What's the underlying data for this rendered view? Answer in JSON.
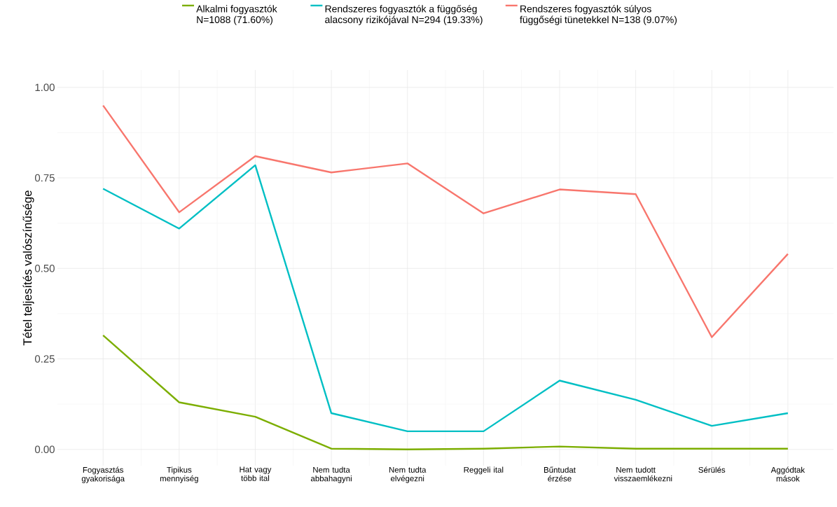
{
  "chart_data": {
    "type": "line",
    "ylabel": "Tétel teljesítés valószínűsége",
    "categories": [
      "Fogyasztás gyakorisága",
      "Tipikus mennyiség",
      "Hat vagy több ital",
      "Nem tudta abbahagyni",
      "Nem tudta elvégezni",
      "Reggeli ital",
      "Bűntudat érzése",
      "Nem tudott visszaemlékezni",
      "Sérülés",
      "Aggódtak mások"
    ],
    "series": [
      {
        "name": "Alkalmi fogyasztók N=1088 (71.60%)",
        "color": "#7cae00",
        "values": [
          0.315,
          0.13,
          0.09,
          0.002,
          0.0,
          0.002,
          0.008,
          0.002,
          0.002,
          0.002
        ]
      },
      {
        "name": "Rendszeres fogyasztók a függőség alacsony rizikójával N=294 (19.33%)",
        "color": "#00bfc4",
        "values": [
          0.72,
          0.61,
          0.785,
          0.1,
          0.05,
          0.05,
          0.19,
          0.137,
          0.065,
          0.1
        ]
      },
      {
        "name": "Rendszeres fogyasztók súlyos függőségi tünetekkel N=138 (9.07%)",
        "color": "#f8766d",
        "values": [
          0.95,
          0.655,
          0.81,
          0.765,
          0.79,
          0.652,
          0.718,
          0.705,
          0.31,
          0.54
        ]
      }
    ],
    "ylim": [
      -0.045,
      1.048
    ],
    "yticks": [
      {
        "value": 0,
        "label": "0.00"
      },
      {
        "value": 0.25,
        "label": "0.25"
      },
      {
        "value": 0.5,
        "label": "0.50"
      },
      {
        "value": 0.75,
        "label": "0.75"
      },
      {
        "value": 1,
        "label": "1.00"
      }
    ],
    "grid": true,
    "legend": "top",
    "marker": "none",
    "line_style": "solid"
  }
}
